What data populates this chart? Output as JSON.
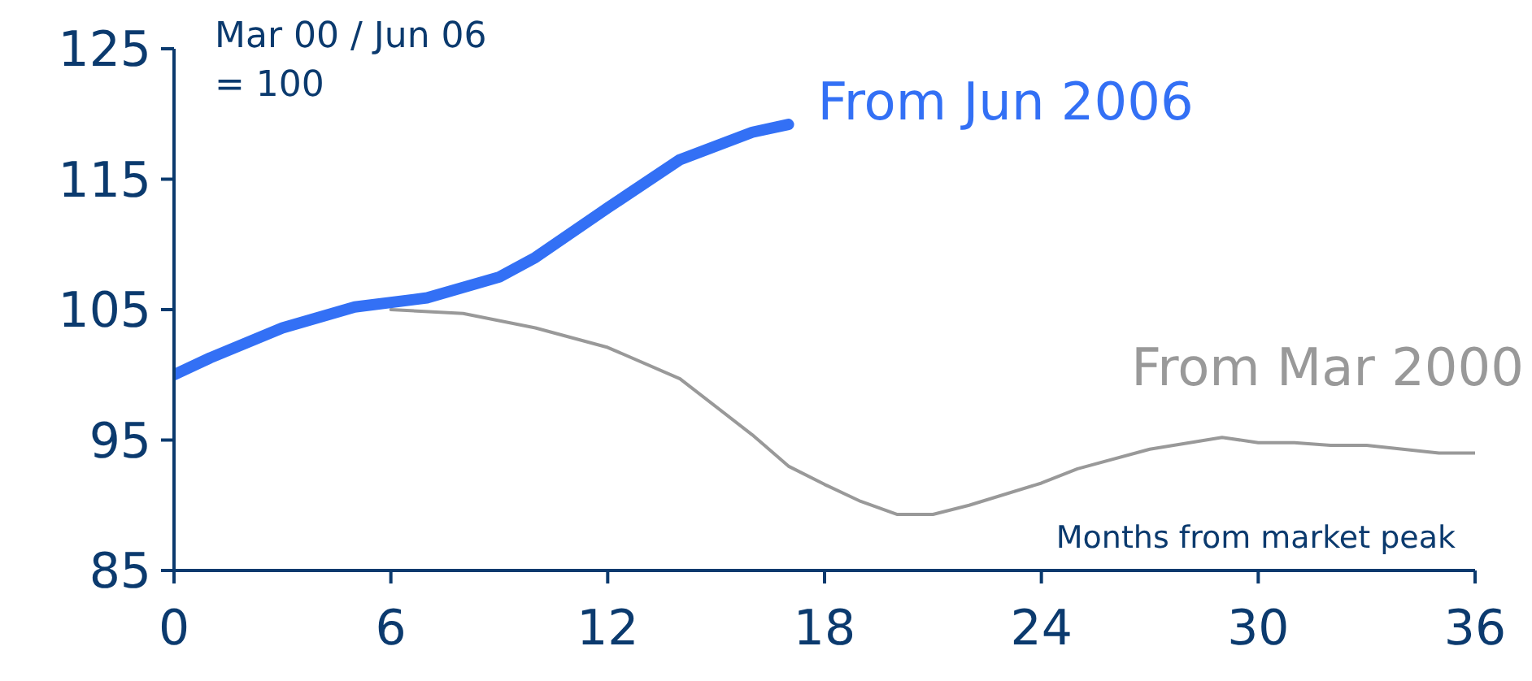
{
  "chart_data": {
    "type": "line",
    "xlabel": "Months from market peak",
    "annotations": [
      "Mar 00 / Jun 06 = 100"
    ],
    "xlim": [
      0,
      36
    ],
    "xticks": [
      0,
      6,
      12,
      18,
      24,
      30,
      36
    ],
    "ylim": [
      85,
      125
    ],
    "yticks": [
      85,
      95,
      105,
      115,
      125
    ],
    "grid": false,
    "legend": false,
    "marker": "none",
    "series": [
      {
        "name": "From Mar 2000",
        "color": "#999999",
        "x": [
          6,
          8,
          10,
          12,
          14,
          16,
          17,
          18,
          19,
          20,
          21,
          22,
          24,
          25,
          27,
          29,
          30,
          31,
          32,
          33,
          35,
          36
        ],
        "values": [
          105,
          104.7,
          103.6,
          102.1,
          99.7,
          95.4,
          93,
          91.6,
          90.3,
          89.3,
          89.3,
          90,
          91.7,
          92.8,
          94.3,
          95.2,
          94.8,
          94.8,
          94.6,
          94.6,
          94,
          94
        ]
      },
      {
        "name": "From Jun 2006",
        "color": "#3370f5",
        "x": [
          0,
          1,
          3,
          5,
          7,
          9,
          10,
          12,
          14,
          16,
          17
        ],
        "values": [
          100,
          101.3,
          103.6,
          105.2,
          105.9,
          107.5,
          109,
          112.8,
          116.5,
          118.6,
          119.2
        ]
      }
    ]
  }
}
